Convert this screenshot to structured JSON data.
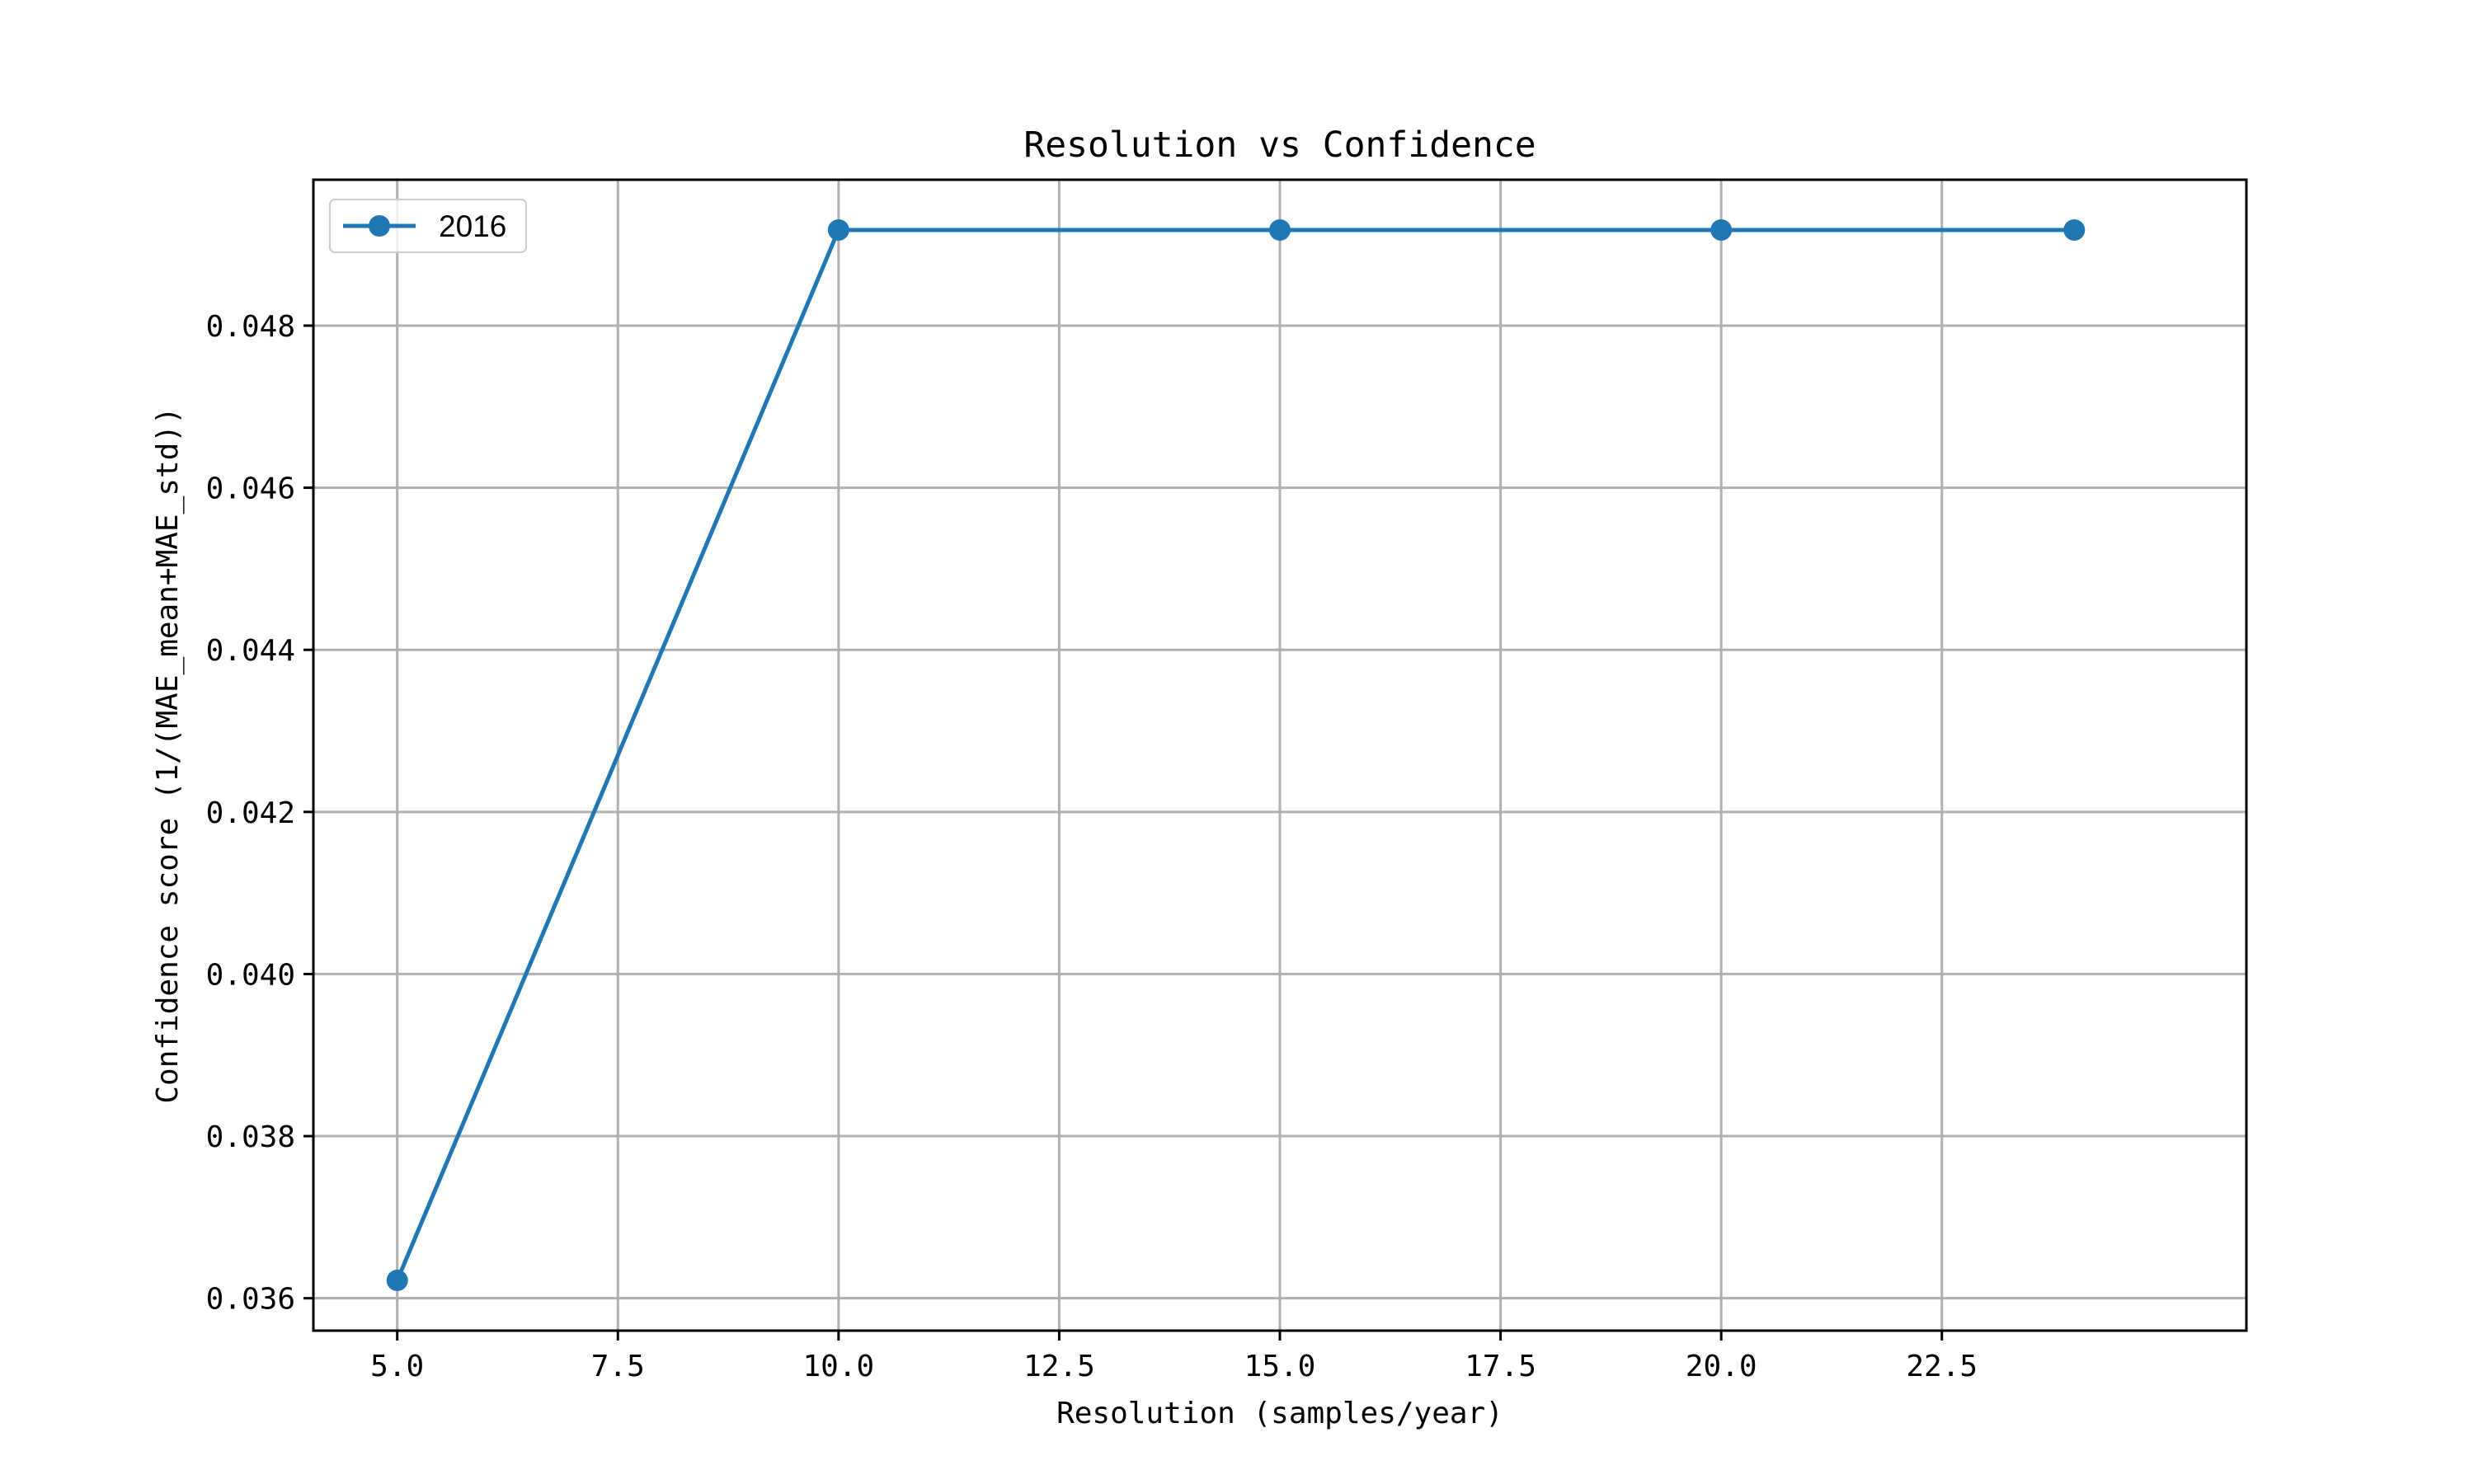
{
  "chart_data": {
    "type": "line",
    "title": "Resolution vs Confidence",
    "xlabel": "Resolution (samples/year)",
    "ylabel": "Confidence score (1/(MAE_mean+MAE_std))",
    "xlim": [
      4.05,
      25.95
    ],
    "ylim": [
      0.0356,
      0.0498
    ],
    "x_ticks": [
      5.0,
      7.5,
      10.0,
      12.5,
      15.0,
      17.5,
      20.0,
      22.5
    ],
    "x_tick_labels": [
      "5.0",
      "7.5",
      "10.0",
      "12.5",
      "15.0",
      "17.5",
      "20.0",
      "22.5"
    ],
    "y_ticks": [
      0.036,
      0.038,
      0.04,
      0.042,
      0.044,
      0.046,
      0.048
    ],
    "y_tick_labels": [
      "0.036",
      "0.038",
      "0.040",
      "0.042",
      "0.044",
      "0.046",
      "0.048"
    ],
    "grid": true,
    "legend_position": "top-left",
    "series": [
      {
        "name": "2016",
        "color": "#1f77b4",
        "marker": "circle",
        "x": [
          5,
          10,
          15,
          20,
          24
        ],
        "y": [
          0.03622,
          0.04918,
          0.04918,
          0.04918,
          0.04918
        ]
      }
    ]
  }
}
